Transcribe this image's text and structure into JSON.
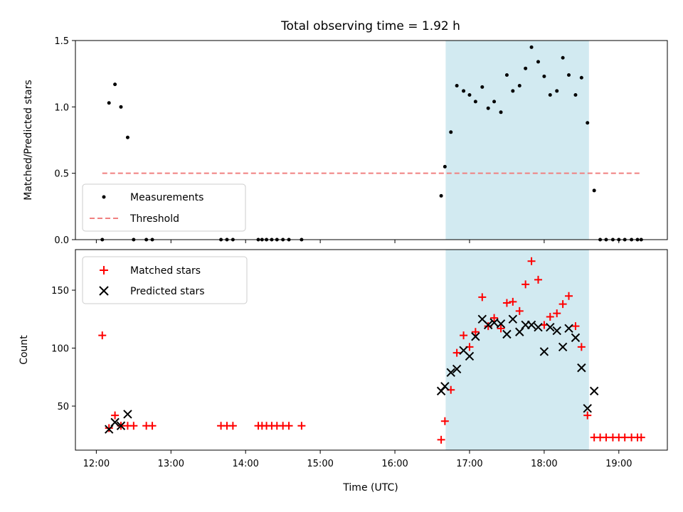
{
  "chart_data": [
    {
      "type": "scatter",
      "title": "Total observing time = 1.92 h",
      "ylabel": "Matched/Predicted stars",
      "xlabel": "",
      "xlim": [
        11.72,
        19.65
      ],
      "ylim": [
        0,
        1.5
      ],
      "yticks": [
        0.0,
        0.5,
        1.0,
        1.5
      ],
      "ytick_labels": [
        "0.0",
        "0.5",
        "1.0",
        "1.5"
      ],
      "xticks": [
        12,
        13,
        14,
        15,
        16,
        17,
        18,
        19
      ],
      "shaded_span": [
        16.68,
        18.6
      ],
      "shade_color": "#add8e6",
      "legend_position": "lower-left",
      "series": [
        {
          "name": "Measurements",
          "kind": "dots",
          "color": "#000000",
          "x": [
            12.08,
            12.17,
            12.25,
            12.33,
            12.42,
            12.5,
            12.67,
            12.75,
            13.67,
            13.75,
            13.83,
            14.17,
            14.22,
            14.28,
            14.35,
            14.42,
            14.5,
            14.58,
            14.75,
            16.62,
            16.67,
            16.75,
            16.83,
            16.92,
            17.0,
            17.08,
            17.17,
            17.25,
            17.33,
            17.42,
            17.5,
            17.58,
            17.67,
            17.75,
            17.83,
            17.92,
            18.0,
            18.08,
            18.17,
            18.25,
            18.33,
            18.42,
            18.5,
            18.58,
            18.67,
            18.75,
            18.83,
            18.92,
            19.0,
            19.08,
            19.17,
            19.25,
            19.3
          ],
          "y": [
            0,
            1.03,
            1.17,
            1.0,
            0.77,
            0,
            0,
            0,
            0,
            0,
            0,
            0,
            0,
            0,
            0,
            0,
            0,
            0,
            0,
            0.33,
            0.55,
            0.81,
            1.16,
            1.12,
            1.09,
            1.04,
            1.15,
            0.99,
            1.04,
            0.96,
            1.24,
            1.12,
            1.16,
            1.29,
            1.45,
            1.34,
            1.23,
            1.09,
            1.12,
            1.37,
            1.24,
            1.09,
            1.22,
            0.88,
            0.37,
            0,
            0,
            0,
            0,
            0,
            0,
            0,
            0
          ]
        },
        {
          "name": "Threshold",
          "kind": "dashed-line",
          "color": "#f08080",
          "x": [
            12.08,
            19.3
          ],
          "y": [
            0.5,
            0.5
          ]
        }
      ]
    },
    {
      "type": "scatter",
      "title": "",
      "ylabel": "Count",
      "xlabel": "Time (UTC)",
      "xlim": [
        11.72,
        19.65
      ],
      "ylim": [
        12,
        185
      ],
      "yticks": [
        50,
        100,
        150
      ],
      "ytick_labels": [
        "50",
        "100",
        "150"
      ],
      "xticks": [
        12,
        13,
        14,
        15,
        16,
        17,
        18,
        19
      ],
      "xtick_labels": [
        "12:00",
        "13:00",
        "14:00",
        "15:00",
        "16:00",
        "17:00",
        "18:00",
        "19:00"
      ],
      "shaded_span": [
        16.68,
        18.6
      ],
      "shade_color": "#add8e6",
      "legend_position": "top-left",
      "series": [
        {
          "name": "Matched stars",
          "kind": "plus",
          "color": "#ff0000",
          "x": [
            12.08,
            12.17,
            12.25,
            12.33,
            12.42,
            12.5,
            12.67,
            12.75,
            13.67,
            13.75,
            13.83,
            14.17,
            14.22,
            14.28,
            14.35,
            14.42,
            14.5,
            14.58,
            14.75,
            16.62,
            16.67,
            16.75,
            16.83,
            16.92,
            17.0,
            17.08,
            17.17,
            17.25,
            17.33,
            17.42,
            17.5,
            17.58,
            17.67,
            17.75,
            17.83,
            17.92,
            18.0,
            18.08,
            18.17,
            18.25,
            18.33,
            18.42,
            18.5,
            18.58,
            18.67,
            18.75,
            18.83,
            18.92,
            19.0,
            19.08,
            19.17,
            19.25,
            19.3
          ],
          "y": [
            111,
            31,
            42,
            33,
            33,
            33,
            33,
            33,
            33,
            33,
            33,
            33,
            33,
            33,
            33,
            33,
            33,
            33,
            33,
            21,
            37,
            64,
            96,
            111,
            101,
            114,
            144,
            119,
            126,
            117,
            139,
            140,
            132,
            155,
            175,
            159,
            120,
            127,
            130,
            138,
            145,
            119,
            101,
            42,
            23,
            23,
            23,
            23,
            23,
            23,
            23,
            23,
            23
          ]
        },
        {
          "name": "Predicted stars",
          "kind": "x",
          "color": "#000000",
          "x": [
            12.17,
            12.25,
            12.33,
            12.42,
            16.62,
            16.67,
            16.75,
            16.83,
            16.92,
            17.0,
            17.08,
            17.17,
            17.25,
            17.33,
            17.42,
            17.5,
            17.58,
            17.67,
            17.75,
            17.83,
            17.92,
            18.0,
            18.08,
            18.17,
            18.25,
            18.33,
            18.42,
            18.5,
            18.58,
            18.67
          ],
          "y": [
            30,
            36,
            33,
            43,
            63,
            67,
            79,
            82,
            98,
            93,
            110,
            125,
            120,
            122,
            121,
            112,
            125,
            114,
            120,
            120,
            118,
            97,
            118,
            115,
            101,
            117,
            109,
            83,
            48,
            63
          ]
        }
      ]
    }
  ]
}
